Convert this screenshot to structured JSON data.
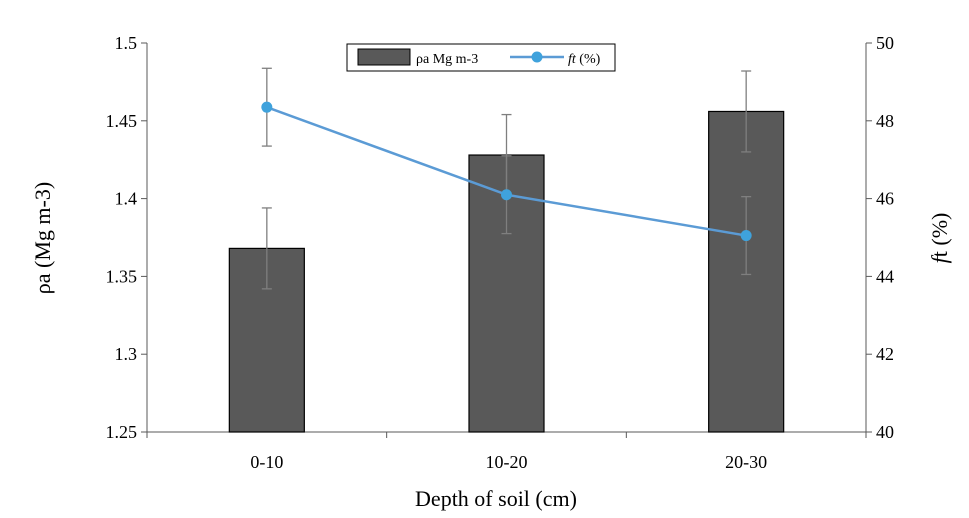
{
  "chart_data": {
    "type": "bar",
    "categories": [
      "0-10",
      "10-20",
      "20-30"
    ],
    "xlabel": "Depth of soil (cm)",
    "ylabel_left": "ρa (Mg m-3)",
    "ylabel_right_italic": "f",
    "ylabel_right_rest": "t  (%)",
    "ylim_left": [
      1.25,
      1.5
    ],
    "yticks_left": [
      1.25,
      1.3,
      1.35,
      1.4,
      1.45,
      1.5
    ],
    "ylim_right": [
      40,
      50
    ],
    "yticks_right": [
      40,
      42,
      44,
      46,
      48,
      50
    ],
    "legend_position": "top-center",
    "grid": false,
    "series": [
      {
        "name": "ρa Mg m-3",
        "kind": "bar",
        "axis": "left",
        "values": [
          1.368,
          1.428,
          1.456
        ],
        "errors": [
          0.026,
          0.026,
          0.026
        ],
        "color": "#595959",
        "legend_label": "ρa Mg m-3"
      },
      {
        "name": "ft (%)",
        "kind": "line",
        "axis": "right",
        "values": [
          48.35,
          46.1,
          45.05
        ],
        "errors": [
          1.0,
          1.0,
          1.0
        ],
        "color": "#5b9bd5",
        "marker_color": "#3fa2dc",
        "legend_italic": "ft",
        "legend_rest": " (%)"
      }
    ]
  }
}
